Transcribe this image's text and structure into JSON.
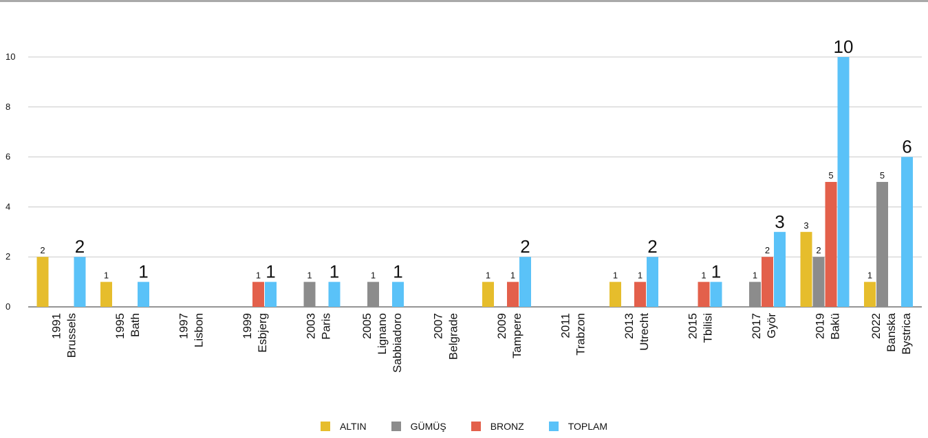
{
  "chart_data": {
    "type": "bar",
    "categories": [
      [
        "1991",
        "Brussels"
      ],
      [
        "1995",
        "Bath"
      ],
      [
        "1997",
        "Lisbon"
      ],
      [
        "1999",
        "Esbjerg"
      ],
      [
        "2003",
        "Paris"
      ],
      [
        "2005",
        "Lignano",
        "Sabbiadoro"
      ],
      [
        "2007",
        "Belgrade"
      ],
      [
        "2009",
        "Tampere"
      ],
      [
        "2011",
        "Trabzon"
      ],
      [
        "2013",
        "Utrecht"
      ],
      [
        "2015",
        "Tbilisi"
      ],
      [
        "2017",
        "Györ"
      ],
      [
        "2019",
        "Bakü"
      ],
      [
        "2022",
        "Banska",
        "Bystrica"
      ]
    ],
    "series": [
      {
        "name": "ALTIN",
        "color": "#e6bd2c",
        "values": [
          2,
          1,
          0,
          0,
          0,
          0,
          0,
          1,
          0,
          1,
          0,
          0,
          3,
          1
        ]
      },
      {
        "name": "GÜMÜŞ",
        "color": "#8c8c8c",
        "values": [
          0,
          0,
          0,
          0,
          1,
          1,
          0,
          0,
          0,
          0,
          0,
          1,
          2,
          5
        ]
      },
      {
        "name": "BRONZ",
        "color": "#e3604b",
        "values": [
          0,
          0,
          0,
          1,
          0,
          0,
          0,
          1,
          0,
          1,
          1,
          2,
          5,
          0
        ]
      },
      {
        "name": "TOPLAM",
        "color": "#5ac2f8",
        "values": [
          2,
          1,
          0,
          1,
          1,
          1,
          0,
          2,
          0,
          2,
          1,
          3,
          10,
          6
        ]
      }
    ],
    "yticks": [
      0,
      2,
      4,
      6,
      8,
      10
    ],
    "ylim": [
      0,
      10
    ],
    "grid": true,
    "legend": "bottom"
  }
}
